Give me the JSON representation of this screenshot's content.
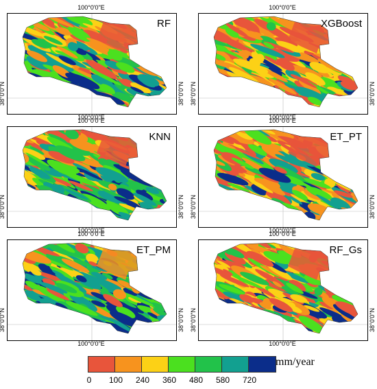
{
  "panels": [
    {
      "title": "RF",
      "lon_label": "100°0'0\"E",
      "lat_label": "38°0'0\"N",
      "bias": "mixed"
    },
    {
      "title": "XGBoost",
      "lon_label": "100°0'0\"E",
      "lat_label": "38°0'0\"N",
      "bias": "dry"
    },
    {
      "title": "KNN",
      "lon_label": "100°0'0\"E",
      "lat_label": "38°0'0\"N",
      "bias": "mixed"
    },
    {
      "title": "ET_PT",
      "lon_label": "100°0'0\"E",
      "lat_label": "38°0'0\"N",
      "bias": "dry"
    },
    {
      "title": "ET_PM",
      "lon_label": "100°0'0\"E",
      "lat_label": "38°0'0\"N",
      "bias": "wet"
    },
    {
      "title": "RF_Gs",
      "lon_label": "100°0'0\"E",
      "lat_label": "38°0'0\"N",
      "bias": "dry"
    }
  ],
  "legend": {
    "unit": "mm/year",
    "ticks": [
      "0",
      "100",
      "240",
      "360",
      "480",
      "580",
      "720"
    ],
    "colors": [
      "#e8553b",
      "#f7931e",
      "#fcd116",
      "#4be01f",
      "#22c24a",
      "#12a090",
      "#0b2d8a"
    ]
  }
}
